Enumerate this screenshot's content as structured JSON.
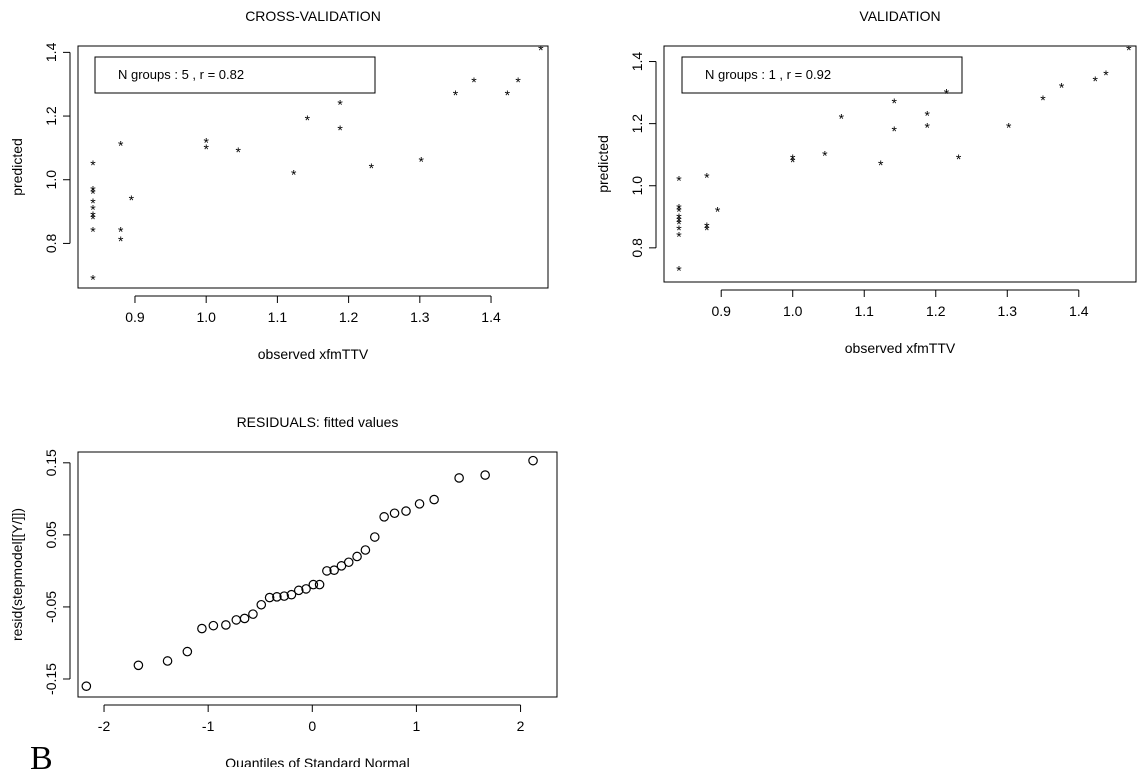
{
  "figure": {
    "panel_letter": "B"
  },
  "chart_data": [
    {
      "type": "scatter",
      "title": "CROSS-VALIDATION",
      "xlabel": "observed xfmTTV",
      "ylabel": "predicted",
      "marker": "*",
      "xlim": [
        0.82,
        1.48
      ],
      "ylim": [
        0.66,
        1.42
      ],
      "xticks": [
        0.9,
        1.0,
        1.1,
        1.2,
        1.3,
        1.4
      ],
      "xtick_labels": [
        "0.9",
        "1.0",
        "1.1",
        "1.2",
        "1.3",
        "1.4"
      ],
      "yticks": [
        0.8,
        1.0,
        1.2,
        1.4
      ],
      "ytick_labels": [
        "0.8",
        "1.0",
        "1.2",
        "1.4"
      ],
      "legend_box": {
        "text": "N groups :  5 , r = 0.82",
        "placement": "top-left"
      },
      "points": [
        [
          0.841,
          1.05
        ],
        [
          0.841,
          0.97
        ],
        [
          0.841,
          0.96
        ],
        [
          0.841,
          0.93
        ],
        [
          0.841,
          0.91
        ],
        [
          0.841,
          0.89
        ],
        [
          0.841,
          0.88
        ],
        [
          0.841,
          0.84
        ],
        [
          0.841,
          0.69
        ],
        [
          0.88,
          1.11
        ],
        [
          0.88,
          0.84
        ],
        [
          0.88,
          0.81
        ],
        [
          0.895,
          0.94
        ],
        [
          1.0,
          1.12
        ],
        [
          1.0,
          1.1
        ],
        [
          1.045,
          1.09
        ],
        [
          1.123,
          1.02
        ],
        [
          1.142,
          1.19
        ],
        [
          1.188,
          1.24
        ],
        [
          1.188,
          1.16
        ],
        [
          1.232,
          1.04
        ],
        [
          1.302,
          1.06
        ],
        [
          1.35,
          1.27
        ],
        [
          1.376,
          1.31
        ],
        [
          1.423,
          1.27
        ],
        [
          1.438,
          1.31
        ],
        [
          1.47,
          1.41
        ]
      ]
    },
    {
      "type": "scatter",
      "title": "VALIDATION",
      "xlabel": "observed xfmTTV",
      "ylabel": "predicted",
      "marker": "*",
      "xlim": [
        0.82,
        1.48
      ],
      "ylim": [
        0.69,
        1.45
      ],
      "xticks": [
        0.9,
        1.0,
        1.1,
        1.2,
        1.3,
        1.4
      ],
      "xtick_labels": [
        "0.9",
        "1.0",
        "1.1",
        "1.2",
        "1.3",
        "1.4"
      ],
      "yticks": [
        0.8,
        1.0,
        1.2,
        1.4
      ],
      "ytick_labels": [
        "0.8",
        "1.0",
        "1.2",
        "1.4"
      ],
      "legend_box": {
        "text": "N groups :  1 , r = 0.92",
        "placement": "top-left"
      },
      "points": [
        [
          0.841,
          1.02
        ],
        [
          0.841,
          0.93
        ],
        [
          0.841,
          0.92
        ],
        [
          0.841,
          0.9
        ],
        [
          0.841,
          0.89
        ],
        [
          0.841,
          0.88
        ],
        [
          0.841,
          0.86
        ],
        [
          0.841,
          0.84
        ],
        [
          0.841,
          0.73
        ],
        [
          0.88,
          1.03
        ],
        [
          0.88,
          0.87
        ],
        [
          0.88,
          0.86
        ],
        [
          0.895,
          0.92
        ],
        [
          1.0,
          1.09
        ],
        [
          1.0,
          1.08
        ],
        [
          1.045,
          1.1
        ],
        [
          1.068,
          1.22
        ],
        [
          1.123,
          1.07
        ],
        [
          1.142,
          1.27
        ],
        [
          1.142,
          1.18
        ],
        [
          1.188,
          1.23
        ],
        [
          1.188,
          1.19
        ],
        [
          1.215,
          1.3
        ],
        [
          1.232,
          1.09
        ],
        [
          1.302,
          1.19
        ],
        [
          1.35,
          1.28
        ],
        [
          1.376,
          1.32
        ],
        [
          1.423,
          1.34
        ],
        [
          1.438,
          1.36
        ],
        [
          1.47,
          1.44
        ]
      ]
    },
    {
      "type": "scatter",
      "title": "RESIDUALS: fitted values",
      "xlabel": "Quantiles of Standard Normal",
      "ylabel": "resid(stepmodel[[Y/]])",
      "marker": "o",
      "xlim": [
        -2.25,
        2.35
      ],
      "ylim": [
        -0.175,
        0.165
      ],
      "xticks": [
        -2,
        -1,
        0,
        1,
        2
      ],
      "xtick_labels": [
        "-2",
        "-1",
        "0",
        "1",
        "2"
      ],
      "yticks": [
        -0.15,
        -0.05,
        0.05,
        0.15
      ],
      "ytick_labels": [
        "-0.15",
        "-0.05",
        "0.05",
        "0.15"
      ],
      "points": [
        [
          -2.17,
          -0.16
        ],
        [
          -1.67,
          -0.131
        ],
        [
          -1.39,
          -0.125
        ],
        [
          -1.2,
          -0.112
        ],
        [
          -1.06,
          -0.08
        ],
        [
          -0.95,
          -0.076
        ],
        [
          -0.83,
          -0.075
        ],
        [
          -0.73,
          -0.068
        ],
        [
          -0.65,
          -0.066
        ],
        [
          -0.57,
          -0.06
        ],
        [
          -0.49,
          -0.047
        ],
        [
          -0.41,
          -0.037
        ],
        [
          -0.34,
          -0.036
        ],
        [
          -0.27,
          -0.035
        ],
        [
          -0.2,
          -0.033
        ],
        [
          -0.13,
          -0.027
        ],
        [
          -0.06,
          -0.025
        ],
        [
          0.01,
          -0.019
        ],
        [
          0.07,
          -0.019
        ],
        [
          0.14,
          0.0
        ],
        [
          0.21,
          0.001
        ],
        [
          0.28,
          0.007
        ],
        [
          0.35,
          0.012
        ],
        [
          0.43,
          0.02
        ],
        [
          0.51,
          0.029
        ],
        [
          0.6,
          0.047
        ],
        [
          0.69,
          0.075
        ],
        [
          0.79,
          0.08
        ],
        [
          0.9,
          0.083
        ],
        [
          1.03,
          0.093
        ],
        [
          1.17,
          0.099
        ],
        [
          1.41,
          0.129
        ],
        [
          1.66,
          0.133
        ],
        [
          2.12,
          0.153
        ]
      ]
    }
  ]
}
